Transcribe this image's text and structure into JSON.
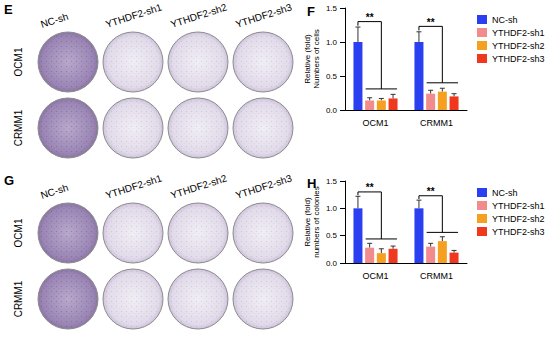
{
  "image_panels": [
    {
      "label": "E",
      "columns": [
        "NC-sh",
        "YTHDF2-sh1",
        "YTHDF2-sh2",
        "YTHDF2-sh3"
      ],
      "rows": [
        "OCM1",
        "CRMM1"
      ]
    },
    {
      "label": "G",
      "columns": [
        "NC-sh",
        "YTHDF2-sh1",
        "YTHDF2-sh2",
        "YTHDF2-sh3"
      ],
      "rows": [
        "OCM1",
        "CRMM1"
      ]
    }
  ],
  "chart_data": [
    {
      "type": "bar",
      "title": "F",
      "ylabel": "Relative (fold)\nNumbers of cells",
      "categories": [
        "OCM1",
        "CRMM1"
      ],
      "series": [
        {
          "name": "NC-sh",
          "color": "#2a3ff0",
          "values": [
            1.0,
            1.0
          ],
          "errors": [
            0.22,
            0.15
          ]
        },
        {
          "name": "YTHDF2-sh1",
          "color": "#f28b8b",
          "values": [
            0.14,
            0.24
          ],
          "errors": [
            0.04,
            0.05
          ]
        },
        {
          "name": "YTHDF2-sh2",
          "color": "#f5a020",
          "values": [
            0.14,
            0.27
          ],
          "errors": [
            0.03,
            0.05
          ]
        },
        {
          "name": "YTHDF2-sh3",
          "color": "#f0381e",
          "values": [
            0.17,
            0.2
          ],
          "errors": [
            0.06,
            0.04
          ]
        }
      ],
      "ylim": [
        0,
        1.5
      ],
      "yticks": [
        {
          "value": 0,
          "label": "0.0"
        },
        {
          "value": 0.5,
          "label": "0.5"
        },
        {
          "value": 1,
          "label": "1.0"
        },
        {
          "value": 1.5,
          "label": "1.5"
        }
      ],
      "legend": "right",
      "grid": false,
      "annotations": [
        {
          "category": "OCM1",
          "text": "**"
        },
        {
          "category": "CRMM1",
          "text": "**"
        }
      ]
    },
    {
      "type": "bar",
      "title": "H",
      "ylabel": "Relative (fold)\nnumbers of colonies",
      "categories": [
        "OCM1",
        "CRMM1"
      ],
      "series": [
        {
          "name": "NC-sh",
          "color": "#2a3ff0",
          "values": [
            1.0,
            1.0
          ],
          "errors": [
            0.22,
            0.15
          ]
        },
        {
          "name": "YTHDF2-sh1",
          "color": "#f28b8b",
          "values": [
            0.28,
            0.3
          ],
          "errors": [
            0.08,
            0.06
          ]
        },
        {
          "name": "YTHDF2-sh2",
          "color": "#f5a020",
          "values": [
            0.18,
            0.4
          ],
          "errors": [
            0.08,
            0.08
          ]
        },
        {
          "name": "YTHDF2-sh3",
          "color": "#f0381e",
          "values": [
            0.26,
            0.19
          ],
          "errors": [
            0.05,
            0.04
          ]
        }
      ],
      "ylim": [
        0,
        1.5
      ],
      "yticks": [
        {
          "value": 0,
          "label": "0.0"
        },
        {
          "value": 0.5,
          "label": "0.5"
        },
        {
          "value": 1,
          "label": "1.0"
        },
        {
          "value": 1.5,
          "label": "1.5"
        }
      ],
      "legend": "right",
      "grid": false,
      "annotations": [
        {
          "category": "OCM1",
          "text": "**"
        },
        {
          "category": "CRMM1",
          "text": "**"
        }
      ]
    }
  ]
}
